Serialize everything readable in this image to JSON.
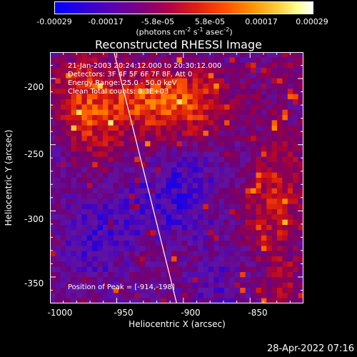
{
  "colorbar": {
    "ticks": [
      "-0.00029",
      "-0.00017",
      "-5.8e-05",
      "5.8e-05",
      "0.00017",
      "0.00029"
    ],
    "unit_prefix": "(photons cm",
    "unit_exp1": "-2",
    "unit_mid": " s",
    "unit_exp2": "-1",
    "unit_suffix": " asec",
    "unit_exp3": "-2",
    "unit_close": ")"
  },
  "chart_data": {
    "type": "heatmap",
    "title": "Reconstructed RHESSI Image",
    "xlabel": "Heliocentric X (arcsec)",
    "ylabel": "Heliocentric Y (arcsec)",
    "xlim": [
      -1000,
      -810
    ],
    "ylim": [
      -370,
      -180
    ],
    "x_ticks": [
      "-1000",
      "-950",
      "-900",
      "-850"
    ],
    "y_ticks": [
      "-200",
      "-250",
      "-300",
      "-350"
    ],
    "x_tick_values": [
      -1000,
      -950,
      -900,
      -850
    ],
    "y_tick_values": [
      -200,
      -250,
      -300,
      -350
    ],
    "colorbar_range": [
      -0.00029,
      0.00029
    ],
    "limb_line": [
      [
        -952,
        -180
      ],
      [
        -905,
        -370
      ]
    ],
    "annotations": [
      "21-Jan-2003 20:24:12.000 to 20:30:12.000",
      "Detectors: 3F 4F 5F 6F 7F 8F, Att 0",
      "Energy Range: 25.0 - 50.0 keV",
      "Clean    Total counts: 8.3E+03"
    ],
    "peak_label": "Position of Peak = [-914,-198]",
    "peak_position": [
      -914,
      -198
    ]
  },
  "footer": {
    "date": "28-Apr-2022 07:16"
  }
}
